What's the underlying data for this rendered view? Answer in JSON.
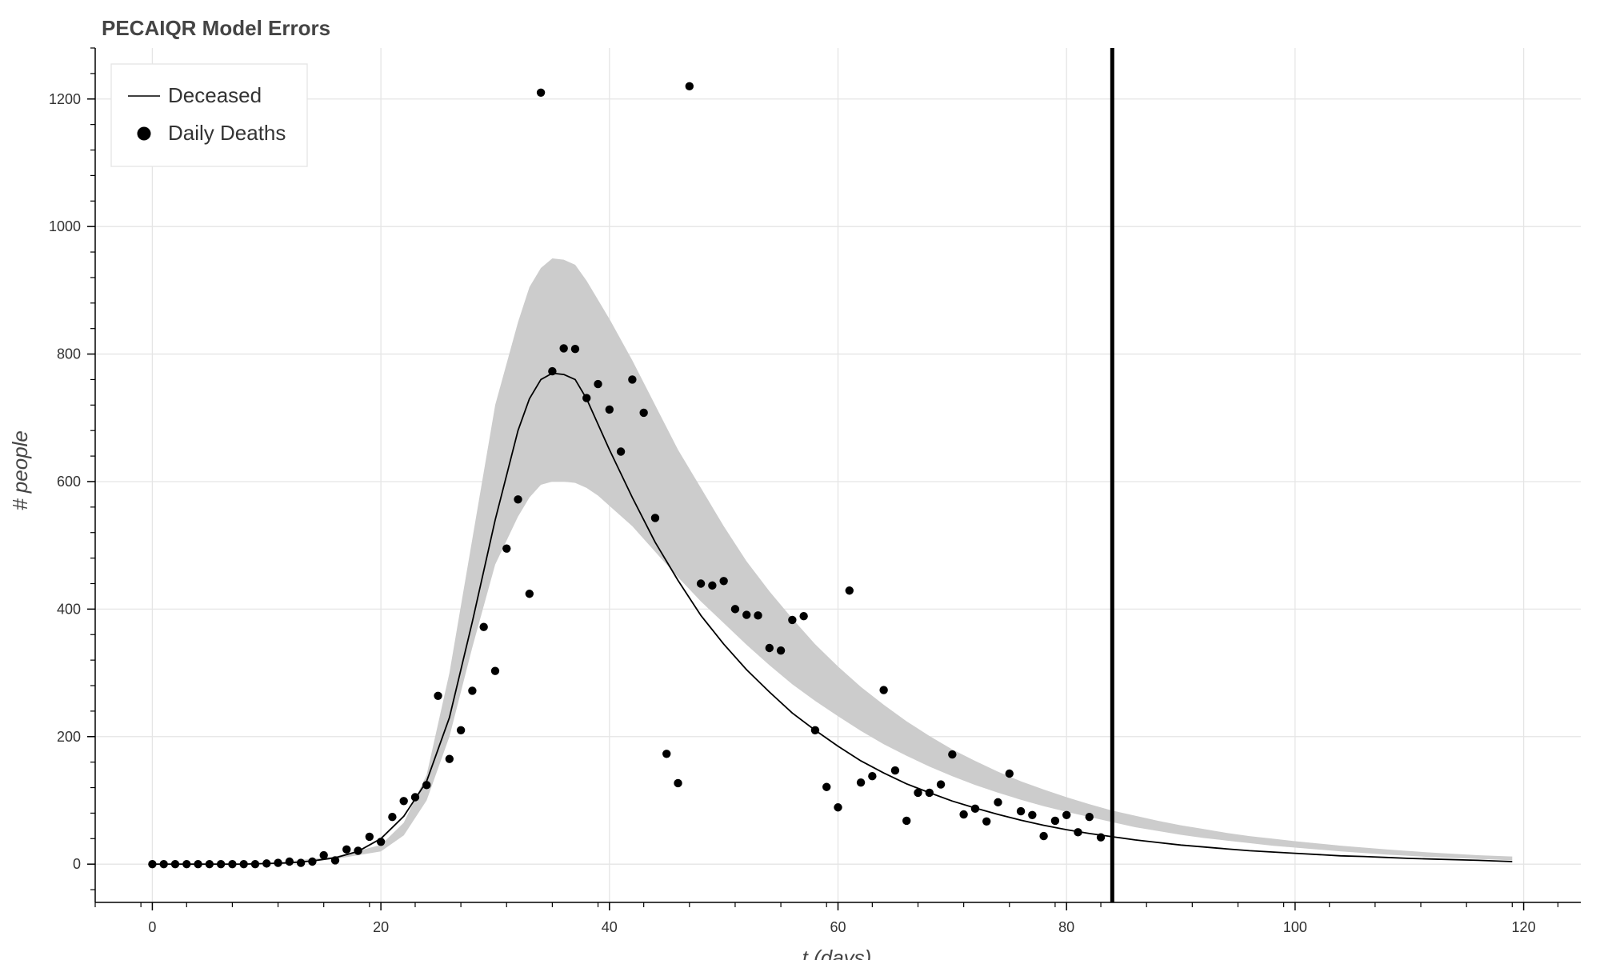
{
  "chart_data": {
    "type": "line",
    "title": "PECAIQR Model Errors",
    "xlabel": "t (days)",
    "ylabel": "# people",
    "xlim": [
      -5,
      125
    ],
    "ylim": [
      -60,
      1280
    ],
    "x_ticks": [
      0,
      20,
      40,
      60,
      80,
      100,
      120
    ],
    "y_ticks": [
      0,
      200,
      400,
      600,
      800,
      1000,
      1200
    ],
    "x_tick_labels": [
      "0",
      "20",
      "40",
      "60",
      "80",
      "100",
      "120"
    ],
    "y_tick_labels": [
      "0",
      "200",
      "400",
      "600",
      "800",
      "1000",
      "1200"
    ],
    "grid": true,
    "legend_position": "top-left",
    "legend": [
      "Deceased",
      "Daily Deaths"
    ],
    "vertical_line": {
      "x": 84
    },
    "series": [
      {
        "name": "Deceased",
        "type": "line",
        "color": "#000000",
        "x": [
          0,
          2,
          4,
          6,
          8,
          10,
          12,
          14,
          16,
          18,
          20,
          22,
          24,
          26,
          28,
          30,
          32,
          33,
          34,
          35,
          36,
          37,
          38,
          39,
          40,
          42,
          44,
          46,
          48,
          50,
          52,
          54,
          56,
          58,
          60,
          62,
          64,
          66,
          68,
          70,
          72,
          74,
          76,
          78,
          80,
          82,
          84,
          86,
          88,
          90,
          92,
          94,
          96,
          98,
          100,
          102,
          104,
          106,
          108,
          110,
          112,
          114,
          116,
          119
        ],
        "y": [
          0,
          0,
          0,
          0,
          0,
          1,
          2,
          5,
          10,
          20,
          40,
          75,
          130,
          230,
          380,
          540,
          680,
          730,
          760,
          770,
          768,
          760,
          730,
          690,
          650,
          575,
          505,
          445,
          390,
          345,
          305,
          270,
          237,
          210,
          185,
          162,
          143,
          126,
          112,
          99,
          88,
          78,
          69,
          61,
          54,
          48,
          43,
          38,
          34,
          30,
          27,
          24,
          21,
          19,
          17,
          15,
          13,
          12,
          10.5,
          9,
          8,
          7,
          6,
          4
        ]
      },
      {
        "name": "error band",
        "type": "area",
        "color": "#cccccc",
        "x": [
          0,
          10,
          16,
          20,
          22,
          24,
          26,
          28,
          30,
          32,
          33,
          34,
          35,
          36,
          37,
          38,
          39,
          40,
          42,
          44,
          46,
          48,
          50,
          52,
          54,
          56,
          58,
          60,
          62,
          64,
          66,
          68,
          70,
          72,
          74,
          76,
          78,
          80,
          82,
          84,
          86,
          88,
          90,
          92,
          94,
          96,
          98,
          100,
          104,
          108,
          112,
          116,
          119
        ],
        "upper": [
          0,
          1,
          12,
          30,
          65,
          140,
          300,
          510,
          720,
          850,
          905,
          935,
          950,
          948,
          940,
          915,
          885,
          855,
          790,
          720,
          650,
          590,
          530,
          475,
          428,
          385,
          345,
          310,
          278,
          250,
          224,
          201,
          180,
          162,
          145,
          130,
          117,
          105,
          94,
          84,
          76,
          68,
          61,
          55,
          49,
          44,
          40,
          36,
          29,
          23,
          18,
          14,
          12
        ],
        "lower": [
          0,
          1,
          8,
          20,
          45,
          100,
          200,
          340,
          470,
          545,
          575,
          595,
          600,
          600,
          598,
          590,
          578,
          562,
          530,
          490,
          450,
          412,
          378,
          344,
          312,
          282,
          256,
          232,
          209,
          188,
          170,
          153,
          138,
          124,
          112,
          101,
          91,
          82,
          74,
          66,
          58,
          52,
          46,
          41,
          37,
          33,
          29,
          26,
          20,
          15,
          11,
          8,
          6
        ]
      },
      {
        "name": "Daily Deaths",
        "type": "scatter",
        "color": "#000000",
        "x": [
          0,
          1,
          2,
          3,
          4,
          5,
          6,
          7,
          8,
          9,
          10,
          11,
          12,
          13,
          14,
          15,
          16,
          17,
          18,
          19,
          20,
          21,
          22,
          23,
          24,
          25,
          26,
          27,
          28,
          29,
          30,
          31,
          32,
          33,
          34,
          35,
          36,
          37,
          38,
          39,
          40,
          41,
          42,
          43,
          44,
          45,
          46,
          47,
          48,
          49,
          50,
          51,
          52,
          53,
          54,
          55,
          56,
          57,
          58,
          59,
          60,
          61,
          62,
          63,
          64,
          65,
          66,
          67,
          68,
          69,
          70,
          71,
          72,
          73,
          74,
          75,
          76,
          77,
          78,
          79,
          80,
          81,
          82,
          83
        ],
        "y": [
          0,
          0,
          0,
          0,
          0,
          0,
          0,
          0,
          0,
          0,
          1,
          2,
          4,
          2,
          4,
          14,
          6,
          23,
          21,
          43,
          35,
          74,
          99,
          105,
          124,
          264,
          165,
          210,
          272,
          372,
          303,
          495,
          572,
          424,
          1210,
          773,
          809,
          808,
          731,
          753,
          713,
          647,
          760,
          708,
          543,
          173,
          127,
          1220,
          440,
          437,
          444,
          400,
          391,
          390,
          339,
          335,
          383,
          389,
          210,
          121,
          89,
          429,
          128,
          138,
          273,
          147,
          68,
          112,
          112,
          125,
          172,
          78,
          87,
          67,
          97,
          142,
          83,
          77,
          44,
          68,
          77,
          50,
          74,
          42
        ]
      }
    ]
  }
}
